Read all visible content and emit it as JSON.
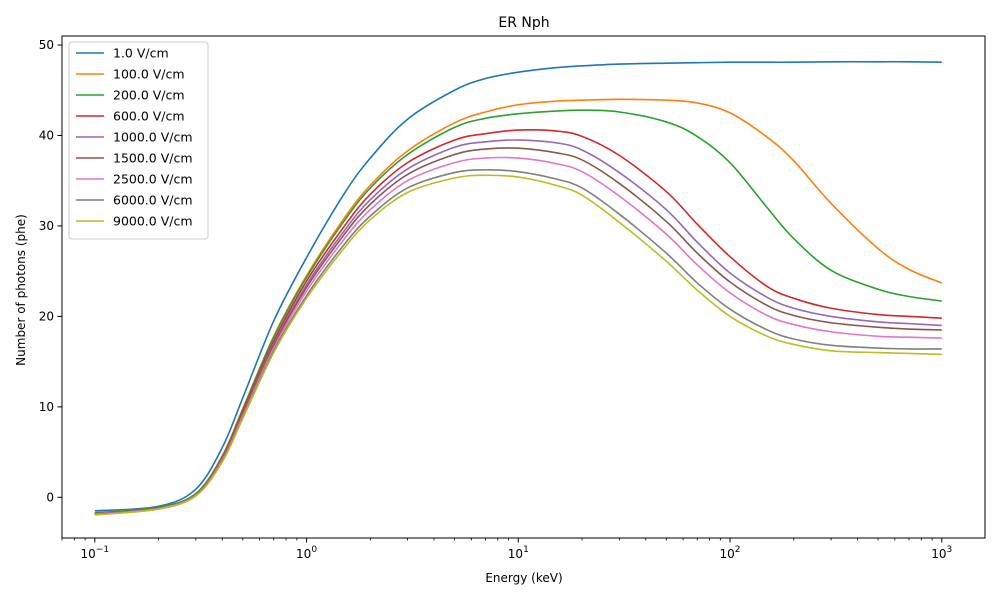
{
  "chart_data": {
    "type": "line",
    "title": "ER Nph",
    "xlabel": "Energy (keV)",
    "ylabel": "Number of photons (phe)",
    "xscale": "log",
    "xlim": [
      0.07,
      1600
    ],
    "ylim": [
      -4.5,
      51
    ],
    "x_ticks": [
      {
        "value": 0.1,
        "base": "10",
        "exp": "−1"
      },
      {
        "value": 1,
        "base": "10",
        "exp": "0"
      },
      {
        "value": 10,
        "base": "10",
        "exp": "1"
      },
      {
        "value": 100,
        "base": "10",
        "exp": "2"
      },
      {
        "value": 1000,
        "base": "10",
        "exp": "3"
      }
    ],
    "y_ticks": [
      0,
      10,
      20,
      30,
      40,
      50
    ],
    "legend_position": "top-left",
    "x": [
      0.1,
      0.2,
      0.3,
      0.4,
      0.5,
      0.7,
      1,
      1.5,
      2,
      3,
      5,
      7,
      10,
      15,
      20,
      30,
      50,
      70,
      100,
      150,
      200,
      300,
      500,
      700,
      1000
    ],
    "series": [
      {
        "name": "1.0 V/cm",
        "color": "#1f77b4",
        "values": [
          -1.5,
          -1.0,
          0.9,
          5.5,
          11.0,
          19.5,
          26.5,
          33.5,
          37.5,
          41.8,
          45.0,
          46.3,
          47.0,
          47.5,
          47.7,
          47.9,
          48.0,
          48.05,
          48.1,
          48.1,
          48.1,
          48.15,
          48.15,
          48.15,
          48.1
        ]
      },
      {
        "name": "100.0 V/cm",
        "color": "#ff7f0e",
        "values": [
          -1.7,
          -1.1,
          0.4,
          4.6,
          9.8,
          17.8,
          24.5,
          30.8,
          34.5,
          38.3,
          41.4,
          42.6,
          43.4,
          43.8,
          43.9,
          44.0,
          43.9,
          43.6,
          42.5,
          39.8,
          37.2,
          32.5,
          27.5,
          25.2,
          23.7
        ]
      },
      {
        "name": "200.0 V/cm",
        "color": "#2ca02c",
        "values": [
          -1.75,
          -1.1,
          0.4,
          4.5,
          9.7,
          17.7,
          24.3,
          30.5,
          34.2,
          37.9,
          40.9,
          41.9,
          42.4,
          42.7,
          42.8,
          42.6,
          41.5,
          39.9,
          37.0,
          32.0,
          28.6,
          25.1,
          23.0,
          22.2,
          21.7
        ]
      },
      {
        "name": "600.0 V/cm",
        "color": "#d62728",
        "values": [
          -1.8,
          -1.2,
          0.3,
          4.4,
          9.5,
          17.3,
          23.9,
          29.9,
          33.5,
          37.0,
          39.5,
          40.2,
          40.6,
          40.5,
          39.9,
          37.8,
          33.8,
          30.2,
          26.6,
          23.3,
          22.0,
          20.9,
          20.2,
          20.0,
          19.8
        ]
      },
      {
        "name": "1000.0 V/cm",
        "color": "#9467bd",
        "values": [
          -1.8,
          -1.2,
          0.3,
          4.3,
          9.3,
          17.0,
          23.5,
          29.4,
          32.9,
          36.3,
          38.7,
          39.3,
          39.5,
          39.2,
          38.4,
          35.9,
          31.8,
          28.2,
          24.8,
          22.1,
          20.9,
          20.0,
          19.4,
          19.2,
          19.0
        ]
      },
      {
        "name": "1500.0 V/cm",
        "color": "#8c564b",
        "values": [
          -1.8,
          -1.2,
          0.3,
          4.2,
          9.2,
          16.8,
          23.2,
          29.0,
          32.4,
          35.7,
          37.9,
          38.5,
          38.6,
          38.1,
          37.3,
          34.7,
          30.5,
          27.0,
          23.8,
          21.2,
          20.1,
          19.3,
          18.8,
          18.6,
          18.5
        ]
      },
      {
        "name": "2500.0 V/cm",
        "color": "#e377c2",
        "values": [
          -1.85,
          -1.25,
          0.25,
          4.1,
          9.0,
          16.5,
          22.8,
          28.5,
          31.8,
          35.0,
          37.0,
          37.5,
          37.5,
          36.9,
          36.0,
          33.3,
          29.1,
          25.7,
          22.6,
          20.1,
          19.1,
          18.3,
          17.8,
          17.7,
          17.6
        ]
      },
      {
        "name": "6000.0 V/cm",
        "color": "#7f7f7f",
        "values": [
          -1.9,
          -1.3,
          0.2,
          4.0,
          8.8,
          16.2,
          22.3,
          27.9,
          31.1,
          34.2,
          35.9,
          36.2,
          36.0,
          35.2,
          34.2,
          31.3,
          27.0,
          23.7,
          20.8,
          18.5,
          17.5,
          16.8,
          16.5,
          16.4,
          16.4
        ]
      },
      {
        "name": "9000.0 V/cm",
        "color": "#bcbd22",
        "values": [
          -1.95,
          -1.3,
          0.15,
          3.9,
          8.7,
          16.0,
          22.0,
          27.5,
          30.7,
          33.7,
          35.3,
          35.6,
          35.4,
          34.5,
          33.4,
          30.4,
          26.1,
          22.9,
          20.0,
          17.8,
          16.9,
          16.2,
          16.0,
          15.9,
          15.8
        ]
      }
    ]
  }
}
